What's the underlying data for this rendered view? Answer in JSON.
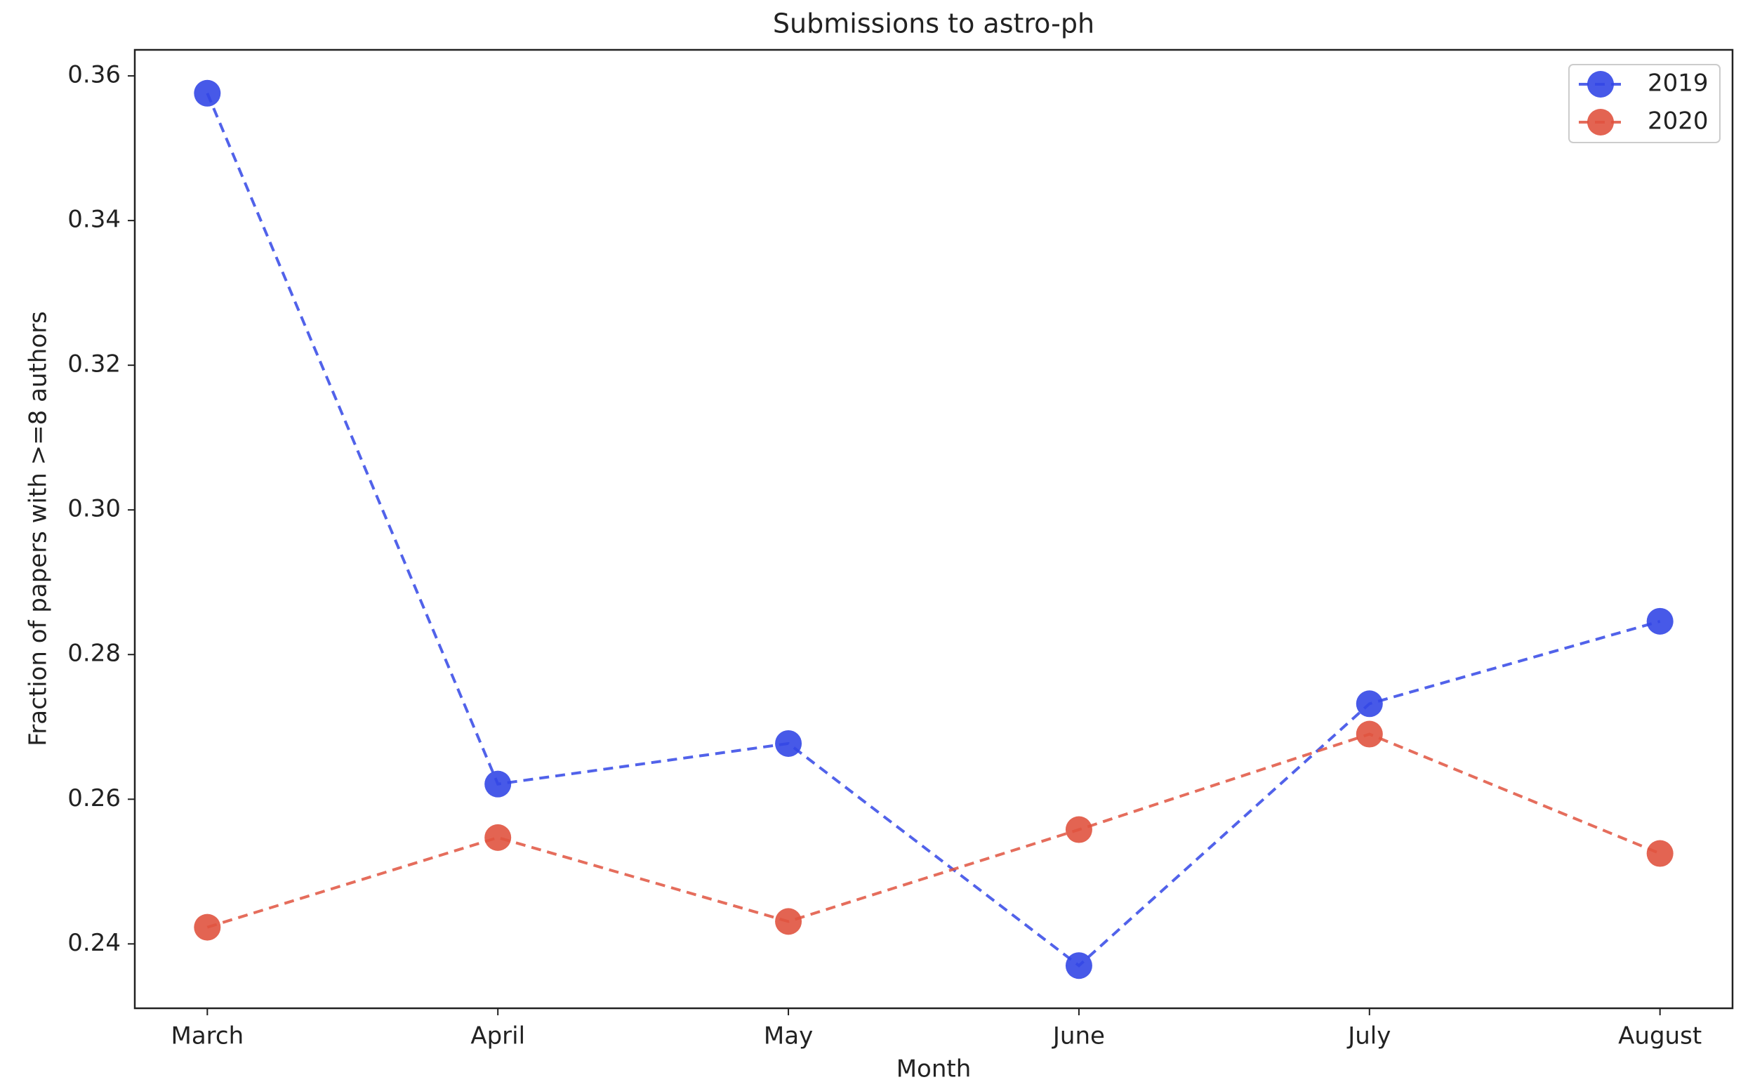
{
  "chart_data": {
    "type": "line",
    "title": "Submissions to astro-ph",
    "x_label": "Month",
    "y_label": "Fraction of papers with >=8 authors",
    "categories": [
      "March",
      "April",
      "May",
      "June",
      "July",
      "August"
    ],
    "series": [
      {
        "name": "2019",
        "color": "#3347e6",
        "values": [
          0.3576,
          0.2621,
          0.2677,
          0.237,
          0.2732,
          0.2846
        ]
      },
      {
        "name": "2020",
        "color": "#e0533f",
        "values": [
          0.2423,
          0.2547,
          0.2431,
          0.2558,
          0.269,
          0.2525
        ]
      }
    ],
    "ylim": [
      0.2311,
      0.3636
    ],
    "yticks": [
      0.24,
      0.26,
      0.28,
      {
        "value": 0.3,
        "label": "0.30"
      },
      0.32,
      0.34,
      0.36
    ],
    "grid": false,
    "legend": "upper right",
    "line_style": "dashed"
  }
}
